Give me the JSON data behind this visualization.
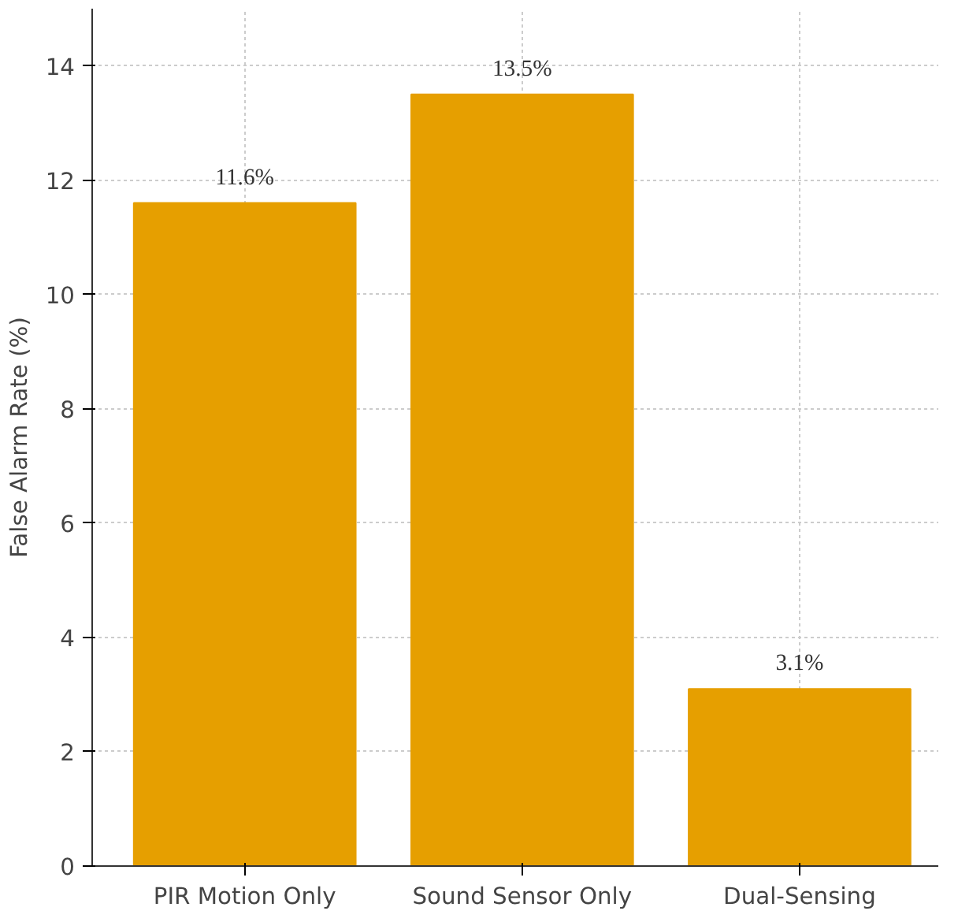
{
  "chart_data": {
    "type": "bar",
    "ylabel": "False Alarm Rate (%)",
    "categories": [
      "PIR Motion Only",
      "Sound Sensor Only",
      "Dual-Sensing"
    ],
    "values": [
      11.6,
      13.5,
      3.1
    ],
    "color": "#e69f00",
    "value_labels": [
      "11.6%",
      "13.5%",
      "3.1%"
    ],
    "ylim": [
      0,
      15
    ],
    "yticks": [
      0,
      2,
      4,
      6,
      8,
      10,
      12,
      14
    ],
    "grid": true
  }
}
